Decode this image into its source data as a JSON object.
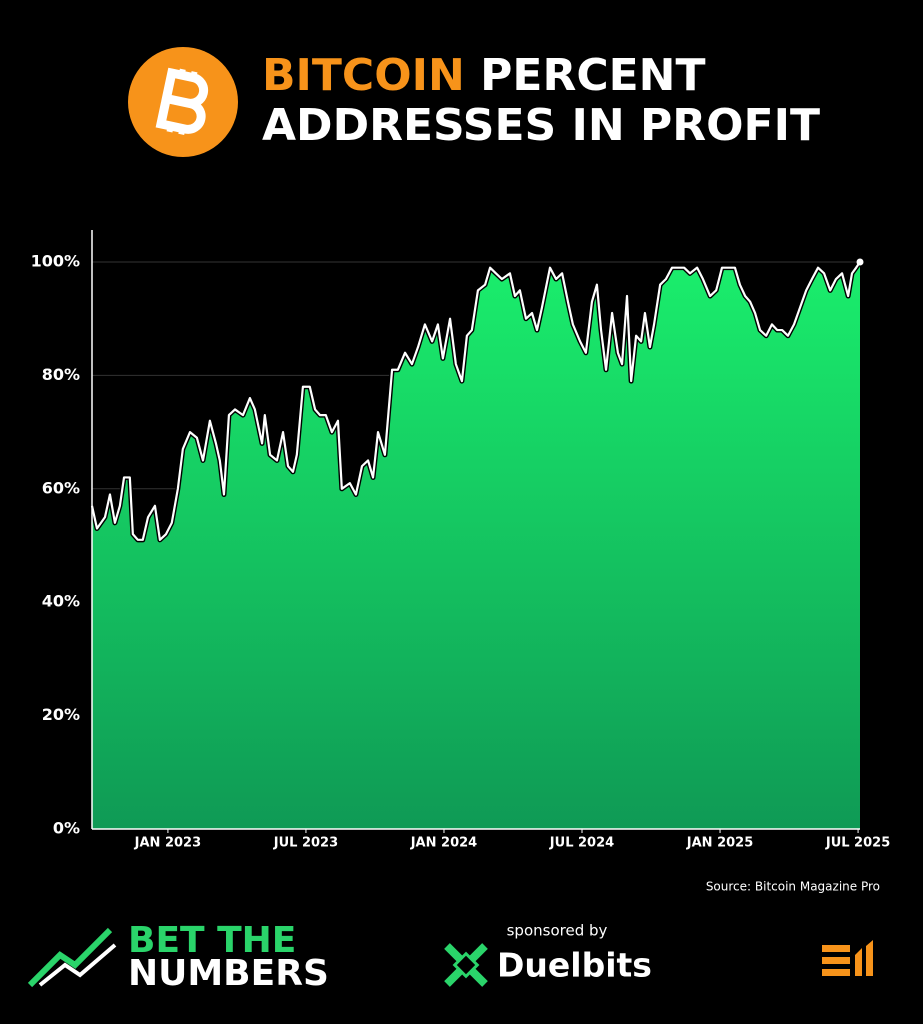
{
  "chart_data": {
    "type": "area",
    "title": {
      "highlight": "BITCOIN",
      "rest": "PERCENT",
      "line2": "ADDRESSES IN PROFIT"
    },
    "source": "Source: Bitcoin Magazine Pro",
    "color": "#1aee6c",
    "color_bottom": "#0f9a55",
    "line_color": "#ffffff",
    "grid": true,
    "xlim": [
      2022.725,
      2025.507
    ],
    "ylim": [
      0,
      105
    ],
    "xticks": [
      {
        "value": 2023,
        "label": "JAN 2023"
      },
      {
        "value": 2023.5,
        "label": "JUL 2023"
      },
      {
        "value": 2024,
        "label": "JAN 2024"
      },
      {
        "value": 2024.5,
        "label": "JUL 2024"
      },
      {
        "value": 2025,
        "label": "JAN 2025"
      },
      {
        "value": 2025.5,
        "label": "JUL 2025"
      }
    ],
    "yticks": [
      {
        "value": 0,
        "label": "0%"
      },
      {
        "value": 20,
        "label": "20%"
      },
      {
        "value": 40,
        "label": "40%"
      },
      {
        "value": 60,
        "label": "60%"
      },
      {
        "value": 80,
        "label": "80%"
      },
      {
        "value": 100,
        "label": "100%"
      }
    ],
    "x": [
      2022.725,
      2022.743,
      2022.772,
      2022.79,
      2022.808,
      2022.826,
      2022.841,
      2022.862,
      2022.873,
      2022.891,
      2022.909,
      2022.928,
      2022.953,
      2022.971,
      2022.993,
      2023.014,
      2023.036,
      2023.054,
      2023.08,
      2023.105,
      2023.127,
      2023.152,
      2023.174,
      2023.188,
      2023.203,
      2023.221,
      2023.243,
      2023.272,
      2023.297,
      2023.315,
      2023.341,
      2023.351,
      2023.37,
      2023.395,
      2023.417,
      2023.435,
      2023.453,
      2023.467,
      2023.489,
      2023.514,
      2023.533,
      2023.551,
      2023.572,
      2023.594,
      2023.616,
      2023.63,
      2023.659,
      2023.681,
      2023.703,
      2023.725,
      2023.743,
      2023.761,
      2023.786,
      2023.812,
      2023.833,
      2023.859,
      2023.884,
      2023.906,
      2023.931,
      2023.957,
      2023.978,
      2023.996,
      2024.022,
      2024.043,
      2024.065,
      2024.083,
      2024.101,
      2024.123,
      2024.149,
      2024.167,
      2024.188,
      2024.21,
      2024.239,
      2024.257,
      2024.275,
      2024.297,
      2024.319,
      2024.337,
      2024.355,
      2024.384,
      2024.406,
      2024.428,
      2024.449,
      2024.467,
      2024.493,
      2024.514,
      2024.536,
      2024.554,
      2024.569,
      2024.587,
      2024.609,
      2024.63,
      2024.645,
      2024.663,
      2024.678,
      2024.696,
      2024.714,
      2024.728,
      2024.746,
      2024.761,
      2024.783,
      2024.804,
      2024.826,
      2024.848,
      2024.87,
      2024.891,
      2024.917,
      2024.938,
      2024.964,
      2024.986,
      2025.007,
      2025.029,
      2025.054,
      2025.072,
      2025.091,
      2025.109,
      2025.127,
      2025.145,
      2025.167,
      2025.188,
      2025.207,
      2025.225,
      2025.246,
      2025.268,
      2025.29,
      2025.312,
      2025.333,
      2025.355,
      2025.377,
      2025.399,
      2025.42,
      2025.442,
      2025.464,
      2025.478,
      2025.493,
      2025.507
    ],
    "values": [
      57,
      53,
      55,
      59,
      54,
      57,
      62,
      62,
      52,
      51,
      51,
      55,
      57,
      51,
      52,
      54,
      60,
      67,
      70,
      69,
      65,
      72,
      68,
      65,
      59,
      73,
      74,
      73,
      76,
      74,
      68,
      73,
      66,
      65,
      70,
      64,
      63,
      66,
      78,
      78,
      74,
      73,
      73,
      70,
      72,
      60,
      61,
      59,
      64,
      65,
      62,
      70,
      66,
      81,
      81,
      84,
      82,
      85,
      89,
      86,
      89,
      83,
      90,
      82,
      79,
      87,
      88,
      95,
      96,
      99,
      98,
      97,
      98,
      94,
      95,
      90,
      91,
      88,
      92,
      99,
      97,
      98,
      93,
      89,
      86,
      84,
      93,
      96,
      88,
      81,
      91,
      84,
      82,
      94,
      79,
      87,
      86,
      91,
      85,
      89,
      96,
      97,
      99,
      99,
      99,
      98,
      99,
      97,
      94,
      95,
      99,
      99,
      99,
      96,
      94,
      93,
      91,
      88,
      87,
      89,
      88,
      88,
      87,
      89,
      92,
      95,
      97,
      99,
      98,
      95,
      97,
      98,
      94,
      98,
      99,
      100
    ]
  },
  "branding": {
    "logo_line1": "BET THE",
    "logo_line2": "NUMBERS",
    "sponsor_label": "sponsored by",
    "sponsor": "Duelbits"
  }
}
